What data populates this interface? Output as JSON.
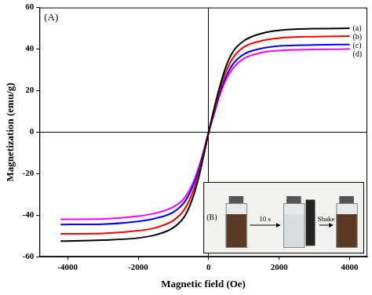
{
  "chart_data": {
    "type": "line",
    "x_label": "Magnetic field (Oe)",
    "y_label": "Magnetization (emu/g)",
    "panel_label": "(A)",
    "inset": {
      "label": "(B)",
      "steps": [
        "10 s",
        "Shake"
      ]
    },
    "x": [
      -4200,
      -3000,
      -2000,
      -1500,
      -1000,
      -700,
      -500,
      -300,
      -150,
      0,
      150,
      300,
      500,
      700,
      1000,
      1500,
      2000,
      3000,
      4000
    ],
    "series": [
      {
        "name": "(a)",
        "color": "#000000",
        "values": [
          -52.5,
          -52,
          -51,
          -49.5,
          -46,
          -41,
          -34,
          -23,
          -12,
          0,
          11,
          21,
          32,
          39,
          44,
          47.5,
          49,
          49.8,
          50
        ]
      },
      {
        "name": "(b)",
        "color": "#ff0000",
        "values": [
          -49,
          -48.8,
          -47.5,
          -46,
          -42.5,
          -37.5,
          -31,
          -21,
          -11,
          0,
          10,
          19.5,
          29.5,
          36,
          41,
          44,
          45.3,
          46,
          46.2
        ]
      },
      {
        "name": "(c)",
        "color": "#0000ff",
        "values": [
          -44.5,
          -44.3,
          -43,
          -41.5,
          -38.5,
          -34,
          -28,
          -19,
          -10,
          0,
          9,
          18,
          27,
          33,
          37.5,
          40.3,
          41.5,
          42,
          42.2
        ]
      },
      {
        "name": "(d)",
        "color": "#ff00ff",
        "values": [
          -42,
          -41.8,
          -40.5,
          -39,
          -36,
          -32,
          -26.5,
          -18,
          -9.5,
          0,
          8.5,
          17,
          25.5,
          31,
          35.5,
          38.3,
          39.3,
          39.8,
          40
        ]
      }
    ],
    "xlim": [
      -4800,
      4500
    ],
    "xticks": [
      -4000,
      -2000,
      0,
      2000,
      4000
    ],
    "ylim": [
      -60,
      60
    ],
    "yticks": [
      -60,
      -40,
      -20,
      0,
      20,
      40,
      60
    ],
    "grid": false
  }
}
